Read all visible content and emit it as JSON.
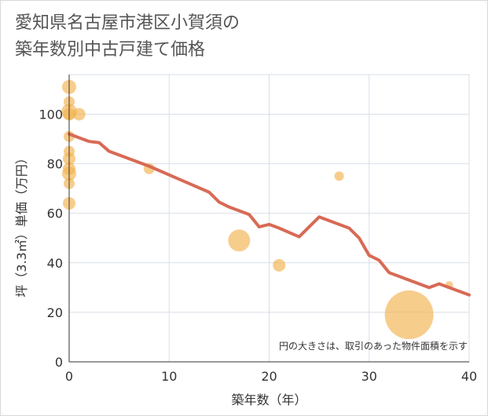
{
  "title": {
    "line1": "愛知県名古屋市港区小賀須の",
    "line2": "築年数別中古戸建て価格"
  },
  "chart_data": {
    "type": "scatter",
    "xlabel": "築年数（年）",
    "ylabel": "坪（3.3㎡）単価（万円）",
    "xlim": [
      0,
      40
    ],
    "ylim": [
      0,
      116
    ],
    "xticks": [
      0,
      10,
      20,
      30,
      40
    ],
    "yticks": [
      0,
      20,
      40,
      60,
      80,
      100
    ],
    "grid": true,
    "note": "円の大きさは、取引のあった物件面積を示す",
    "colors": {
      "bubble": "#f2b24f",
      "line": "#d86a55",
      "grid": "#d7dfe8",
      "axis": "#333333"
    },
    "scatter": [
      {
        "x": 0,
        "y": 111,
        "size": 9
      },
      {
        "x": 0,
        "y": 105,
        "size": 7
      },
      {
        "x": 0,
        "y": 101,
        "size": 10
      },
      {
        "x": 0,
        "y": 100,
        "size": 8
      },
      {
        "x": 1,
        "y": 100,
        "size": 8
      },
      {
        "x": 0,
        "y": 91,
        "size": 7
      },
      {
        "x": 0,
        "y": 85,
        "size": 7
      },
      {
        "x": 0,
        "y": 82,
        "size": 8
      },
      {
        "x": 0,
        "y": 78,
        "size": 8
      },
      {
        "x": 0,
        "y": 76,
        "size": 9
      },
      {
        "x": 0,
        "y": 72,
        "size": 7
      },
      {
        "x": 0,
        "y": 64,
        "size": 8
      },
      {
        "x": 8,
        "y": 78,
        "size": 7
      },
      {
        "x": 17,
        "y": 49,
        "size": 14
      },
      {
        "x": 21,
        "y": 39,
        "size": 8
      },
      {
        "x": 27,
        "y": 75,
        "size": 6
      },
      {
        "x": 34,
        "y": 19,
        "size": 31
      },
      {
        "x": 38,
        "y": 31,
        "size": 5
      }
    ],
    "trend": {
      "x": [
        0,
        2,
        3,
        4,
        6,
        8,
        10,
        12,
        14,
        15,
        16,
        18,
        19,
        20,
        21,
        23,
        25,
        27,
        28,
        29,
        30,
        31,
        32,
        34,
        36,
        37,
        40
      ],
      "y": [
        92,
        89,
        88.5,
        85,
        82,
        79,
        75.5,
        72,
        68.5,
        64.5,
        62.5,
        59.5,
        54.5,
        55.5,
        54,
        50.5,
        58.5,
        55.5,
        54,
        50,
        43,
        41,
        36,
        33,
        30,
        31.5,
        27
      ]
    }
  }
}
